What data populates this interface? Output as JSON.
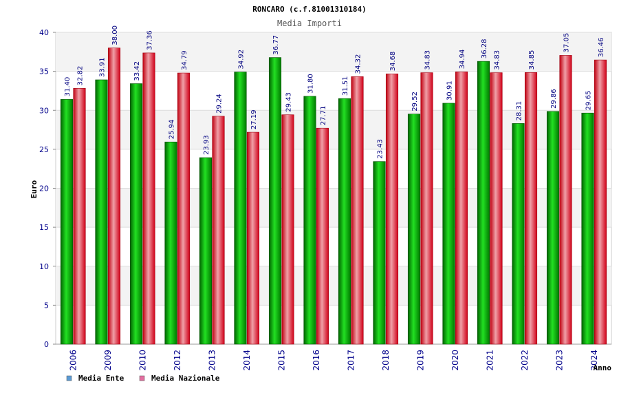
{
  "chart_data": {
    "type": "bar",
    "title": "RONCARO (c.f.81001310184)",
    "subtitle": "Media Importi",
    "xlabel": "Anno",
    "ylabel": "Euro",
    "ylim": [
      0,
      40
    ],
    "yticks": [
      0,
      5,
      10,
      15,
      20,
      25,
      30,
      35,
      40
    ],
    "grid": true,
    "legend_position": "bottom-left",
    "categories": [
      "2006",
      "2009",
      "2010",
      "2012",
      "2013",
      "2014",
      "2015",
      "2016",
      "2017",
      "2018",
      "2019",
      "2020",
      "2021",
      "2022",
      "2023",
      "2024"
    ],
    "series": [
      {
        "name": "Media Ente",
        "color": "#00b000",
        "legend_color": "#5b9bd5",
        "values": [
          31.4,
          33.91,
          33.42,
          25.94,
          23.93,
          34.92,
          36.77,
          31.8,
          31.51,
          23.43,
          29.52,
          30.91,
          36.28,
          28.31,
          29.86,
          29.65
        ],
        "labels": [
          "31.40",
          "33.91",
          "33.42",
          "25.94",
          "23.93",
          "34.92",
          "36.77",
          "31.80",
          "31.51",
          "23.43",
          "29.52",
          "30.91",
          "36.28",
          "28.31",
          "29.86",
          "29.65"
        ]
      },
      {
        "name": "Media Nazionale",
        "color": "#e01020",
        "legend_color": "#e36fa0",
        "values": [
          32.82,
          38.0,
          37.36,
          34.79,
          29.24,
          27.19,
          29.43,
          27.71,
          34.32,
          34.68,
          34.83,
          34.94,
          34.83,
          34.85,
          37.05,
          36.46
        ],
        "labels": [
          "32.82",
          "38.00",
          "37.36",
          "34.79",
          "29.24",
          "27.19",
          "29.43",
          "27.71",
          "34.32",
          "34.68",
          "34.83",
          "34.94",
          "34.83",
          "34.85",
          "37.05",
          "36.46"
        ]
      }
    ]
  }
}
